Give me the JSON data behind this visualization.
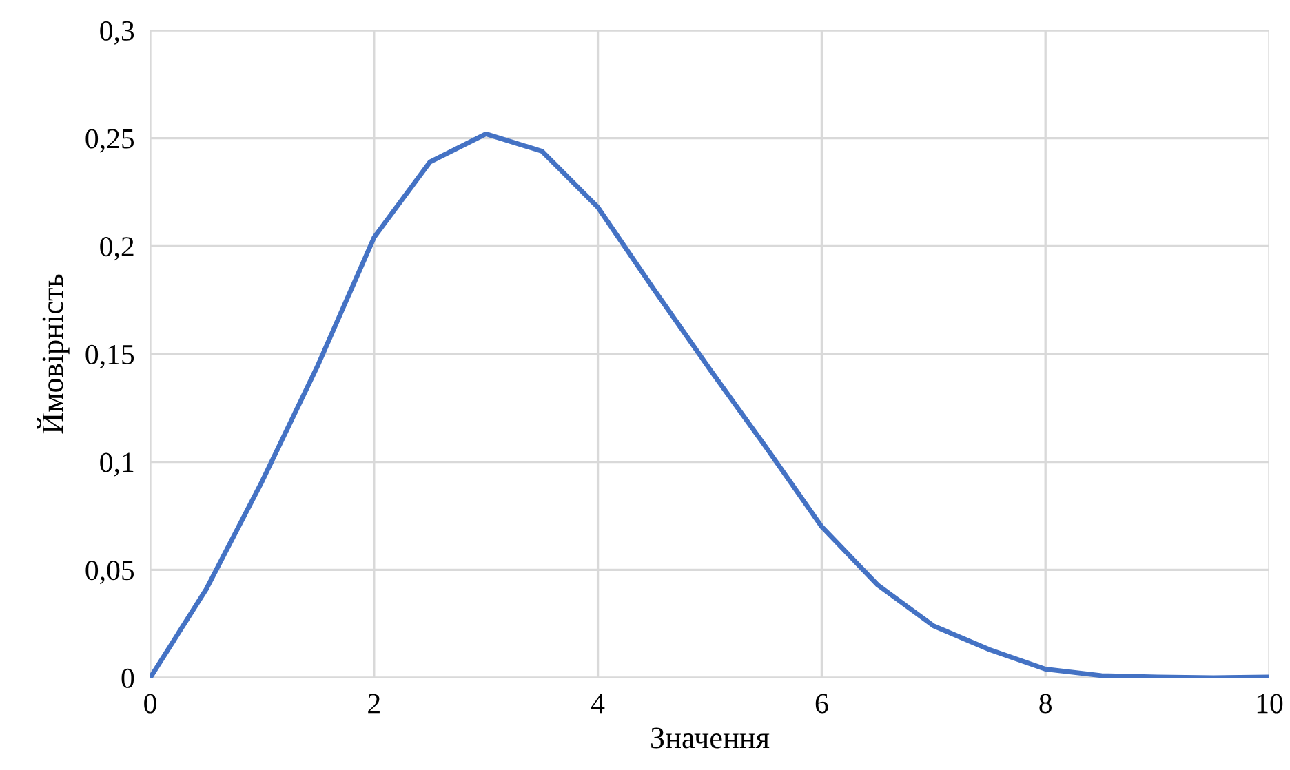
{
  "chart_data": {
    "type": "line",
    "xlabel": "Значення",
    "ylabel": "Ймовірність",
    "x": [
      0,
      0.5,
      1,
      1.5,
      2,
      2.5,
      3,
      3.5,
      4,
      4.5,
      5,
      5.5,
      6,
      6.5,
      7,
      7.5,
      8,
      8.5,
      9,
      9.5,
      10
    ],
    "series": [
      {
        "color": "#4472c4",
        "values": [
          0,
          0.041,
          0.091,
          0.145,
          0.204,
          0.239,
          0.252,
          0.244,
          0.218,
          0.18,
          0.143,
          0.107,
          0.07,
          0.043,
          0.024,
          0.013,
          0.004,
          0.001,
          0.0003,
          0,
          0.0003
        ]
      }
    ],
    "xlim": [
      0,
      10
    ],
    "xticks": [
      0,
      2,
      4,
      6,
      8,
      10
    ],
    "ylim": [
      0,
      0.3
    ],
    "yticks": [
      0,
      {
        "value": 0.05,
        "label": "0,05"
      },
      {
        "value": 0.1,
        "label": "0,1"
      },
      {
        "value": 0.15,
        "label": "0,15"
      },
      {
        "value": 0.2,
        "label": "0,2"
      },
      {
        "value": 0.25,
        "label": "0,25"
      },
      {
        "value": 0.3,
        "label": "0,3"
      }
    ],
    "grid": true,
    "marker": "none",
    "line_style": "solid",
    "legend": false
  }
}
